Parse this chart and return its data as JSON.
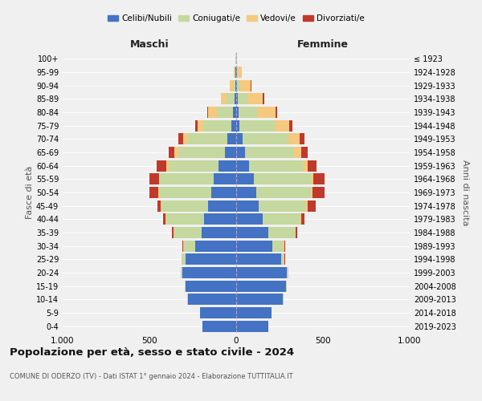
{
  "age_groups": [
    "0-4",
    "5-9",
    "10-14",
    "15-19",
    "20-24",
    "25-29",
    "30-34",
    "35-39",
    "40-44",
    "45-49",
    "50-54",
    "55-59",
    "60-64",
    "65-69",
    "70-74",
    "75-79",
    "80-84",
    "85-89",
    "90-94",
    "95-99",
    "100+"
  ],
  "birth_years": [
    "2019-2023",
    "2014-2018",
    "2009-2013",
    "2004-2008",
    "1999-2003",
    "1994-1998",
    "1989-1993",
    "1984-1988",
    "1979-1983",
    "1974-1978",
    "1969-1973",
    "1964-1968",
    "1959-1963",
    "1954-1958",
    "1949-1953",
    "1944-1948",
    "1939-1943",
    "1934-1938",
    "1929-1933",
    "1924-1928",
    "≤ 1923"
  ],
  "colors": {
    "celibi": "#4472c4",
    "coniugati": "#c5d8a0",
    "vedovi": "#f5c97e",
    "divorziati": "#c0392b"
  },
  "maschi": {
    "celibi": [
      195,
      210,
      280,
      290,
      310,
      290,
      235,
      200,
      185,
      160,
      145,
      130,
      100,
      65,
      50,
      30,
      20,
      10,
      5,
      3,
      2
    ],
    "coniugati": [
      0,
      0,
      2,
      5,
      10,
      25,
      70,
      160,
      220,
      270,
      300,
      310,
      290,
      270,
      230,
      160,
      90,
      45,
      15,
      4,
      1
    ],
    "vedovi": [
      0,
      0,
      0,
      0,
      0,
      0,
      0,
      1,
      2,
      3,
      5,
      5,
      12,
      20,
      25,
      30,
      50,
      35,
      15,
      5,
      1
    ],
    "divorziati": [
      0,
      0,
      0,
      0,
      0,
      2,
      5,
      10,
      15,
      20,
      50,
      55,
      55,
      35,
      30,
      15,
      5,
      0,
      0,
      0,
      0
    ]
  },
  "femmine": {
    "celibi": [
      185,
      205,
      270,
      285,
      290,
      260,
      210,
      185,
      155,
      130,
      115,
      100,
      75,
      50,
      35,
      20,
      15,
      10,
      5,
      3,
      2
    ],
    "coniugati": [
      0,
      0,
      2,
      5,
      10,
      20,
      65,
      155,
      215,
      275,
      315,
      330,
      310,
      285,
      265,
      200,
      110,
      55,
      20,
      5,
      1
    ],
    "vedovi": [
      0,
      0,
      0,
      0,
      0,
      0,
      1,
      2,
      3,
      5,
      10,
      15,
      25,
      40,
      65,
      85,
      100,
      90,
      60,
      25,
      3
    ],
    "divorziati": [
      0,
      0,
      0,
      0,
      0,
      2,
      5,
      12,
      20,
      50,
      70,
      65,
      55,
      35,
      30,
      20,
      10,
      5,
      2,
      0,
      0
    ]
  },
  "title": "Popolazione per età, sesso e stato civile - 2024",
  "subtitle": "COMUNE DI ODERZO (TV) - Dati ISTAT 1° gennaio 2024 - Elaborazione TUTTITALIA.IT",
  "xlabel_left": "Maschi",
  "xlabel_right": "Femmine",
  "ylabel_left": "Fasce di età",
  "ylabel_right": "Anni di nascita",
  "xlim": 1000,
  "xtick_labels": [
    "1.000",
    "500",
    "0",
    "500",
    "1.000"
  ],
  "legend_labels": [
    "Celibi/Nubili",
    "Coniugati/e",
    "Vedovi/e",
    "Divorziati/e"
  ],
  "bg_color": "#f0f0f0",
  "bar_height": 0.85
}
